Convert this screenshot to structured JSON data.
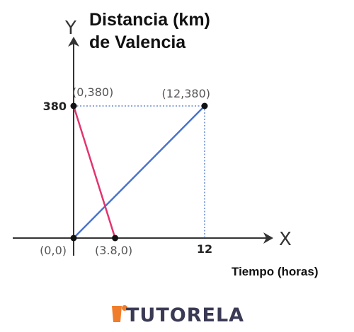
{
  "chart_data": {
    "type": "line",
    "title_lines": [
      "Distancia (km)",
      "de Valencia"
    ],
    "xlabel": "Tiempo (horas)",
    "axis_letters": {
      "x": "X",
      "y": "Y"
    },
    "xlim": [
      0,
      16.5
    ],
    "ylim": [
      0,
      500
    ],
    "ticks": {
      "x": [
        {
          "value": 12,
          "label": "12"
        }
      ],
      "y": [
        {
          "value": 380,
          "label": "380"
        }
      ]
    },
    "series": [
      {
        "color": "#4a74c9",
        "points": [
          {
            "x": 0,
            "y": 0
          },
          {
            "x": 12,
            "y": 380
          }
        ]
      },
      {
        "color": "#e2356f",
        "points": [
          {
            "x": 0,
            "y": 380
          },
          {
            "x": 3.8,
            "y": 0
          }
        ]
      }
    ],
    "point_labels": [
      {
        "x": 0,
        "y": 380,
        "text": "(0,380)",
        "marker": true,
        "pos": "above-right"
      },
      {
        "x": 12,
        "y": 380,
        "text": "(12,380)",
        "marker": true,
        "pos": "above-left"
      },
      {
        "x": 0,
        "y": 0,
        "text": "(0,0)",
        "marker": true,
        "pos": "below-left"
      },
      {
        "x": 3.8,
        "y": 0,
        "text": "(3.8,0)",
        "marker": true,
        "pos": "below"
      }
    ],
    "guide_lines": {
      "color": "#4a74c9",
      "style": "dotted",
      "from_point": {
        "x": 12,
        "y": 380
      }
    },
    "grid": false
  },
  "logo": {
    "text": "TUTORELA",
    "colors": {
      "accent": "#f07d2c",
      "text": "#3a3a55"
    }
  }
}
